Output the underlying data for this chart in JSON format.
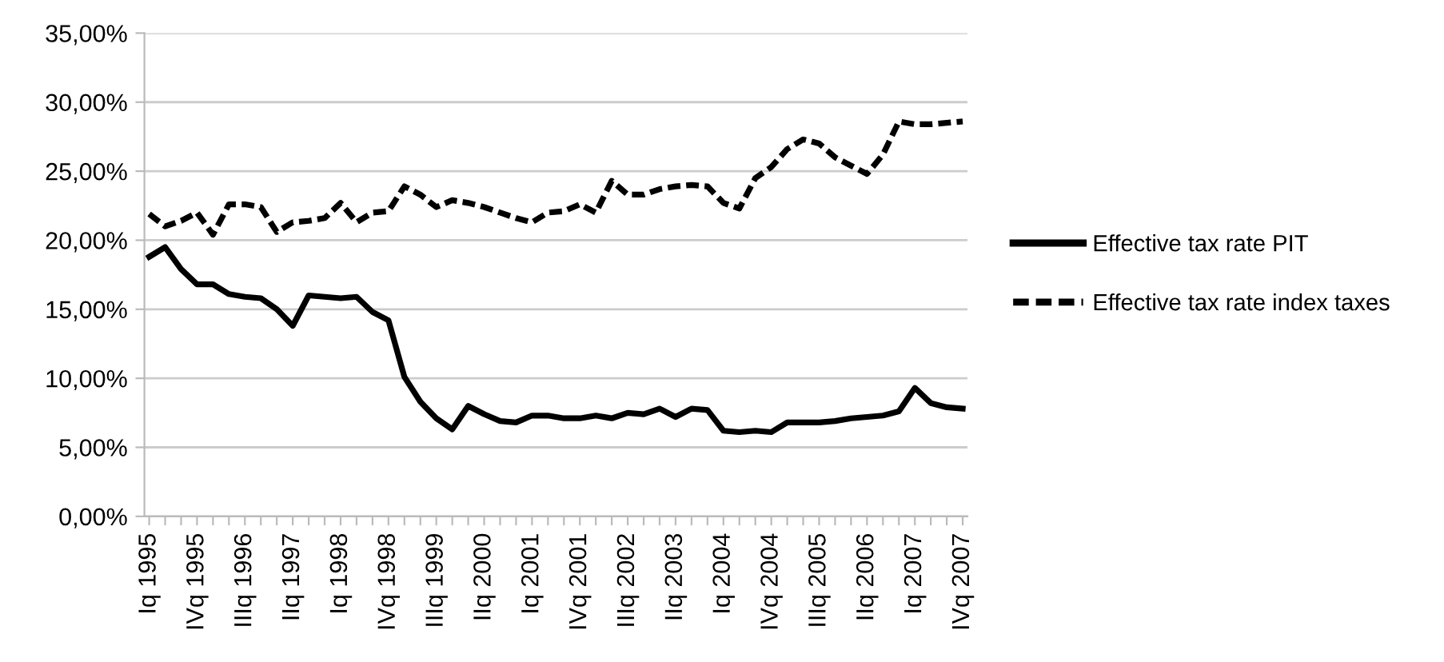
{
  "chart_data": {
    "type": "line",
    "categories": [
      "Iq 1995",
      null,
      null,
      "IVq 1995",
      null,
      null,
      "IIIq 1996",
      null,
      null,
      "IIq 1997",
      null,
      null,
      "Iq 1998",
      null,
      null,
      "IVq 1998",
      null,
      null,
      "IIIq 1999",
      null,
      null,
      "IIq 2000",
      null,
      null,
      "Iq 2001",
      null,
      null,
      "IVq 2001",
      null,
      null,
      "IIIq 2002",
      null,
      null,
      "IIq 2003",
      null,
      null,
      "Iq 2004",
      null,
      null,
      "IVq 2004",
      null,
      null,
      "IIIq 2005",
      null,
      null,
      "IIq 2006",
      null,
      null,
      "Iq 2007",
      null,
      null,
      "IVq 2007"
    ],
    "series": [
      {
        "name": "Effective tax rate PIT",
        "color": "#000000",
        "line_style": "solid",
        "values": [
          18.8,
          19.5,
          17.9,
          16.8,
          16.8,
          16.1,
          15.9,
          15.8,
          15.0,
          13.8,
          16.0,
          15.9,
          15.8,
          15.9,
          14.8,
          14.2,
          10.1,
          8.3,
          7.1,
          6.3,
          8.0,
          7.4,
          6.9,
          6.8,
          7.3,
          7.3,
          7.1,
          7.1,
          7.3,
          7.1,
          7.5,
          7.4,
          7.8,
          7.2,
          7.8,
          7.7,
          6.2,
          6.1,
          6.2,
          6.1,
          6.8,
          6.8,
          6.8,
          6.9,
          7.1,
          7.2,
          7.3,
          7.6,
          9.3,
          8.2,
          7.9,
          7.8
        ]
      },
      {
        "name": "Effective tax rate index taxes",
        "color": "#000000",
        "line_style": "dashed",
        "values": [
          21.9,
          21.0,
          21.4,
          22.0,
          20.4,
          22.6,
          22.6,
          22.4,
          20.6,
          21.3,
          21.4,
          21.6,
          22.7,
          21.3,
          22.0,
          22.1,
          23.9,
          23.3,
          22.4,
          22.9,
          22.7,
          22.4,
          22.0,
          21.6,
          21.3,
          22.0,
          22.1,
          22.6,
          22.0,
          24.3,
          23.3,
          23.3,
          23.7,
          23.9,
          24.0,
          23.9,
          22.7,
          22.3,
          24.5,
          25.3,
          26.6,
          27.3,
          27.0,
          26.0,
          25.4,
          24.8,
          26.2,
          28.6,
          28.4,
          28.4,
          28.5,
          28.6
        ]
      }
    ],
    "ylim": [
      0,
      35
    ],
    "yticks": [
      {
        "value": 0,
        "label": "0,00%"
      },
      {
        "value": 5,
        "label": "5,00%"
      },
      {
        "value": 10,
        "label": "10,00%"
      },
      {
        "value": 15,
        "label": "15,00%"
      },
      {
        "value": 20,
        "label": "20,00%"
      },
      {
        "value": 25,
        "label": "25,00%"
      },
      {
        "value": 30,
        "label": "30,00%"
      },
      {
        "value": 35,
        "label": "35,00%"
      }
    ],
    "grid": "y",
    "legend": "right"
  }
}
